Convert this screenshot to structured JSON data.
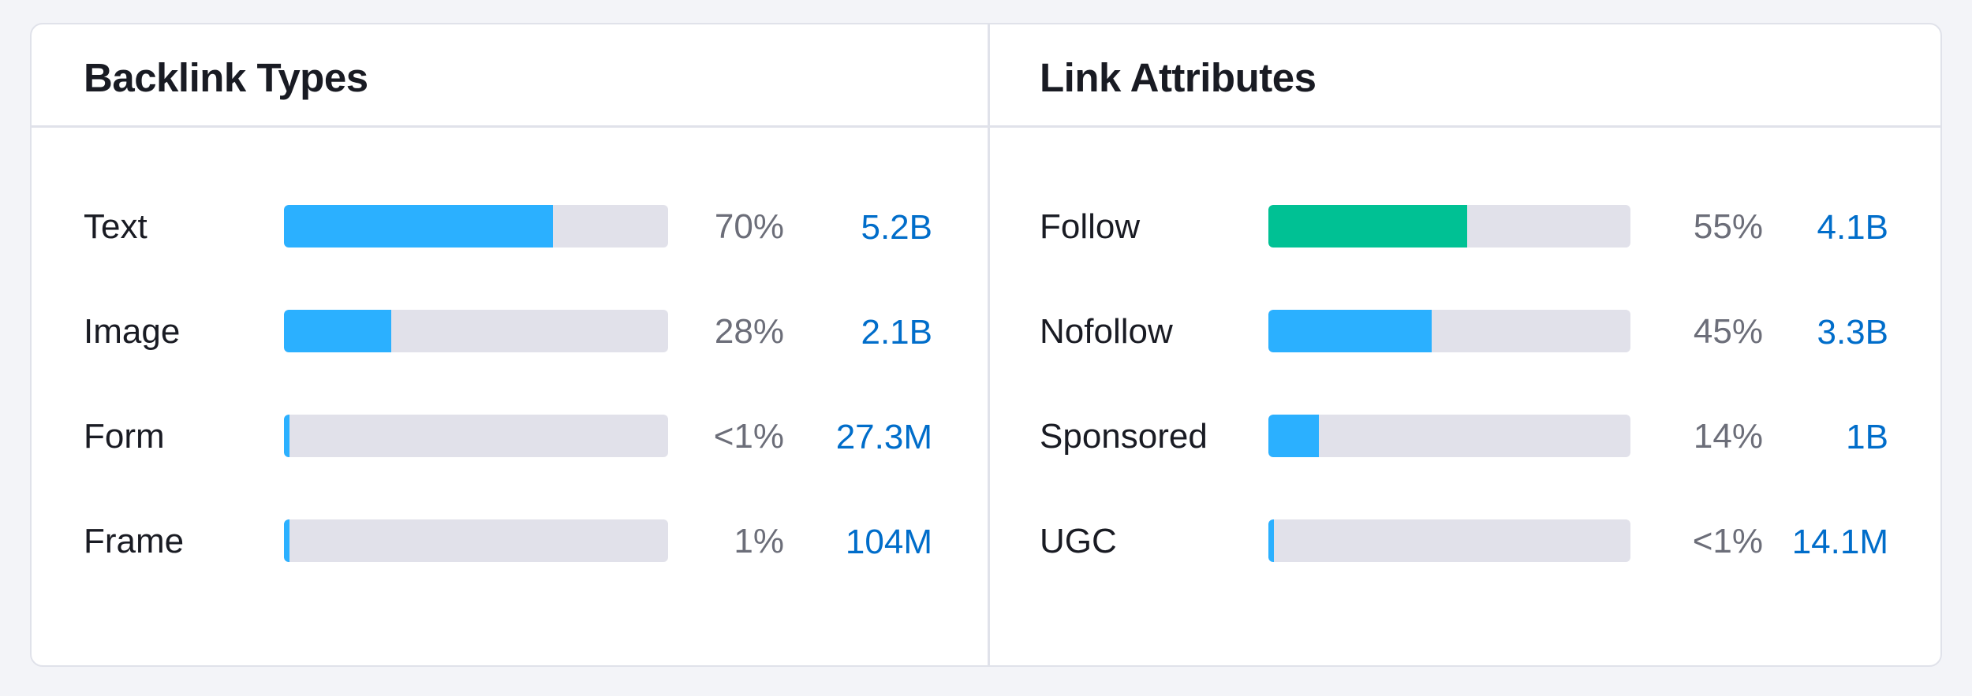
{
  "colors": {
    "background": "#f3f4f8",
    "card": "#ffffff",
    "border": "#e0e2ea",
    "track": "#e1e1ea",
    "blue_bar": "#2bb0ff",
    "green_bar": "#00c194",
    "link": "#006dca",
    "muted": "#6c6e79",
    "text": "#191b23"
  },
  "backlink_types": {
    "title": "Backlink Types",
    "rows": [
      {
        "label": "Text",
        "percent": "70%",
        "count": "5.2B",
        "fill": 0.7,
        "color": "#2bb0ff"
      },
      {
        "label": "Image",
        "percent": "28%",
        "count": "2.1B",
        "fill": 0.28,
        "color": "#2bb0ff"
      },
      {
        "label": "Form",
        "percent": "<1%",
        "count": "27.3M",
        "fill": 0.008,
        "color": "#2bb0ff"
      },
      {
        "label": "Frame",
        "percent": "1%",
        "count": "104M",
        "fill": 0.008,
        "color": "#2bb0ff"
      }
    ]
  },
  "link_attributes": {
    "title": "Link Attributes",
    "rows": [
      {
        "label": "Follow",
        "percent": "55%",
        "count": "4.1B",
        "fill": 0.55,
        "color": "#00c194"
      },
      {
        "label": "Nofollow",
        "percent": "45%",
        "count": "3.3B",
        "fill": 0.45,
        "color": "#2bb0ff"
      },
      {
        "label": "Sponsored",
        "percent": "14%",
        "count": "1B",
        "fill": 0.14,
        "color": "#2bb0ff"
      },
      {
        "label": "UGC",
        "percent": "<1%",
        "count": "14.1M",
        "fill": 0.008,
        "color": "#2bb0ff"
      }
    ]
  }
}
